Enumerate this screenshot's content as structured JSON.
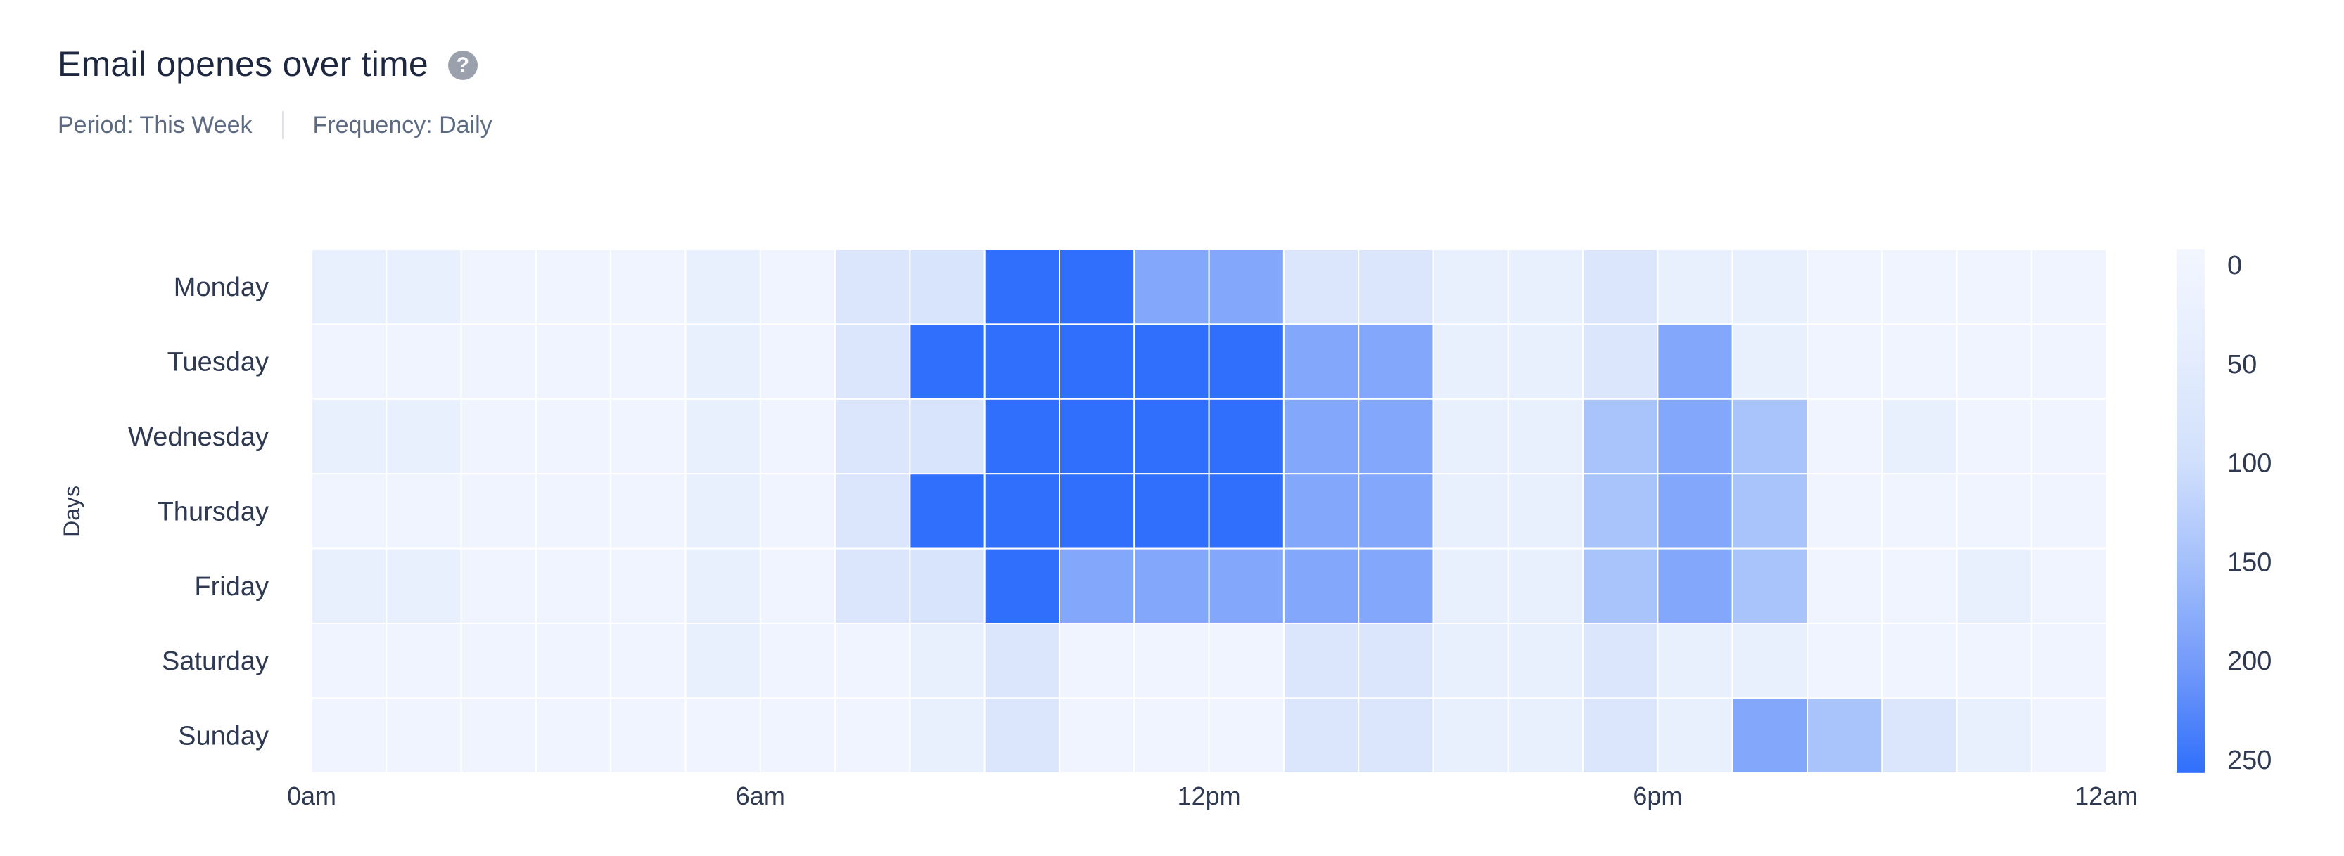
{
  "header": {
    "title": "Email openes over time",
    "help_icon": "question-circle-icon",
    "period": "Period: This Week",
    "frequency": "Frequency: Daily"
  },
  "chart_data": {
    "type": "heatmap",
    "title": "Email openes over time",
    "ylabel": "Days",
    "xlabel": "",
    "rows": [
      "Monday",
      "Tuesday",
      "Wednesday",
      "Thursday",
      "Friday",
      "Saturday",
      "Sunday"
    ],
    "columns": [
      "0",
      "1",
      "2",
      "3",
      "4",
      "5",
      "6",
      "7",
      "8",
      "9",
      "10",
      "11",
      "12",
      "13",
      "14",
      "15",
      "16",
      "17",
      "18",
      "19",
      "20",
      "21",
      "22",
      "23"
    ],
    "x_ticks": [
      {
        "col": 0,
        "label": "0am"
      },
      {
        "col": 6,
        "label": "6am"
      },
      {
        "col": 12,
        "label": "12pm"
      },
      {
        "col": 18,
        "label": "6pm"
      },
      {
        "col": 24,
        "label": "12am"
      }
    ],
    "values": [
      [
        40,
        40,
        10,
        10,
        10,
        40,
        10,
        80,
        90,
        260,
        260,
        190,
        190,
        80,
        80,
        40,
        40,
        80,
        40,
        40,
        10,
        10,
        10,
        10
      ],
      [
        10,
        10,
        10,
        10,
        10,
        40,
        10,
        80,
        260,
        260,
        260,
        260,
        260,
        190,
        190,
        40,
        40,
        80,
        190,
        40,
        10,
        10,
        10,
        10
      ],
      [
        40,
        40,
        10,
        10,
        10,
        40,
        10,
        80,
        90,
        260,
        260,
        260,
        260,
        190,
        190,
        40,
        40,
        150,
        190,
        150,
        10,
        40,
        10,
        10
      ],
      [
        10,
        10,
        10,
        10,
        10,
        40,
        10,
        80,
        260,
        260,
        260,
        260,
        260,
        190,
        190,
        40,
        40,
        150,
        190,
        150,
        10,
        10,
        10,
        10
      ],
      [
        40,
        40,
        10,
        10,
        10,
        40,
        10,
        80,
        90,
        260,
        190,
        190,
        190,
        190,
        190,
        40,
        40,
        150,
        190,
        150,
        10,
        10,
        40,
        10
      ],
      [
        10,
        10,
        10,
        10,
        10,
        40,
        10,
        10,
        40,
        80,
        10,
        10,
        10,
        80,
        80,
        40,
        40,
        80,
        40,
        40,
        10,
        10,
        10,
        10
      ],
      [
        10,
        10,
        10,
        10,
        10,
        10,
        10,
        10,
        40,
        80,
        10,
        10,
        10,
        80,
        80,
        40,
        40,
        80,
        40,
        190,
        150,
        80,
        40,
        10
      ]
    ],
    "color_scale": {
      "min": 0,
      "max": 260,
      "colors": [
        "#f2f6fe",
        "#e5edfd",
        "#d2e0fc",
        "#a4c0fb",
        "#7299fa",
        "#2f6ffb"
      ],
      "ticks": [
        0,
        50,
        100,
        150,
        200,
        250
      ]
    },
    "grid": false,
    "legend": "right"
  }
}
